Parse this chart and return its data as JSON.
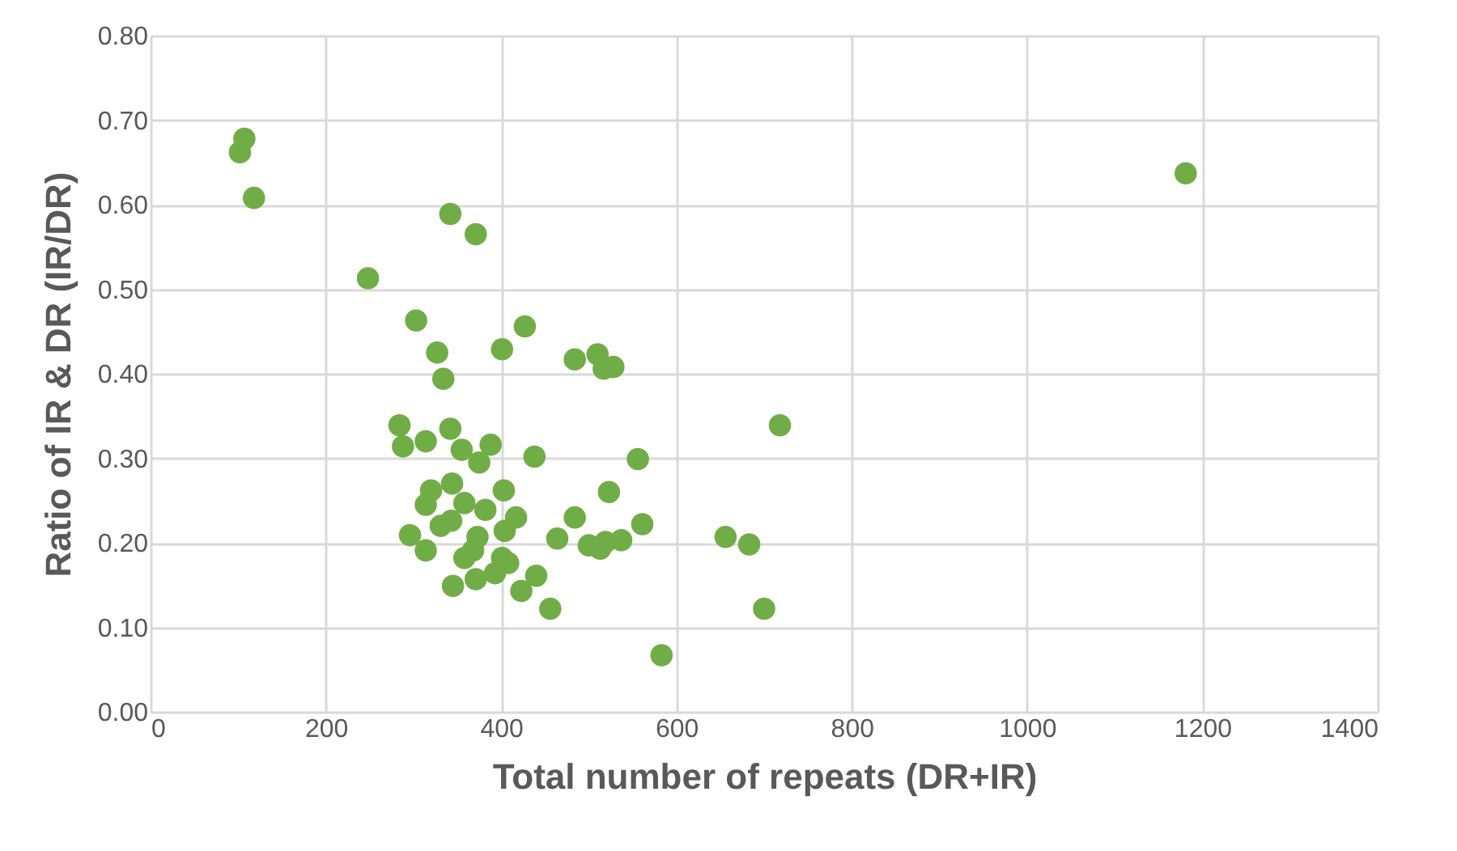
{
  "chart_data": {
    "type": "scatter",
    "xlabel": "Total number of repeats (DR+IR)",
    "ylabel": "Ratio of IR & DR (IR/DR)",
    "xlim": [
      0,
      1400
    ],
    "xticks": [
      0,
      200,
      400,
      600,
      800,
      1000,
      1200,
      1400
    ],
    "ylim": [
      0,
      0.8
    ],
    "yticks": [
      {
        "value": 0,
        "label": "0.00"
      },
      {
        "value": 0.1,
        "label": "0.10"
      },
      {
        "value": 0.2,
        "label": "0.20"
      },
      {
        "value": 0.3,
        "label": "0.30"
      },
      {
        "value": 0.4,
        "label": "0.40"
      },
      {
        "value": 0.5,
        "label": "0.50"
      },
      {
        "value": 0.6,
        "label": "0.60"
      },
      {
        "value": 0.7,
        "label": "0.70"
      },
      {
        "value": 0.8,
        "label": "0.80"
      }
    ],
    "grid": true,
    "marker": "circle",
    "series": [
      {
        "color": "#70ad47",
        "x": [
          107,
          102,
          118,
          248,
          342,
          371,
          303,
          427,
          327,
          401,
          334,
          484,
          510,
          517,
          528,
          284,
          288,
          314,
          342,
          355,
          388,
          375,
          438,
          556,
          344,
          320,
          314,
          358,
          382,
          403,
          523,
          417,
          484,
          561,
          296,
          331,
          343,
          314,
          373,
          404,
          464,
          500,
          513,
          519,
          537,
          358,
          368,
          401,
          393,
          408,
          371,
          345,
          440,
          423,
          456,
          583,
          718,
          656,
          683,
          700,
          1181
        ],
        "values": [
          0.678,
          0.662,
          0.608,
          0.513,
          0.589,
          0.565,
          0.463,
          0.456,
          0.425,
          0.429,
          0.394,
          0.417,
          0.423,
          0.406,
          0.408,
          0.339,
          0.314,
          0.32,
          0.335,
          0.31,
          0.316,
          0.295,
          0.302,
          0.299,
          0.27,
          0.262,
          0.245,
          0.247,
          0.239,
          0.262,
          0.26,
          0.23,
          0.23,
          0.222,
          0.209,
          0.22,
          0.226,
          0.191,
          0.207,
          0.214,
          0.205,
          0.197,
          0.193,
          0.201,
          0.203,
          0.182,
          0.191,
          0.182,
          0.164,
          0.176,
          0.157,
          0.149,
          0.161,
          0.143,
          0.122,
          0.067,
          0.339,
          0.207,
          0.198,
          0.122,
          0.637
        ]
      }
    ]
  }
}
